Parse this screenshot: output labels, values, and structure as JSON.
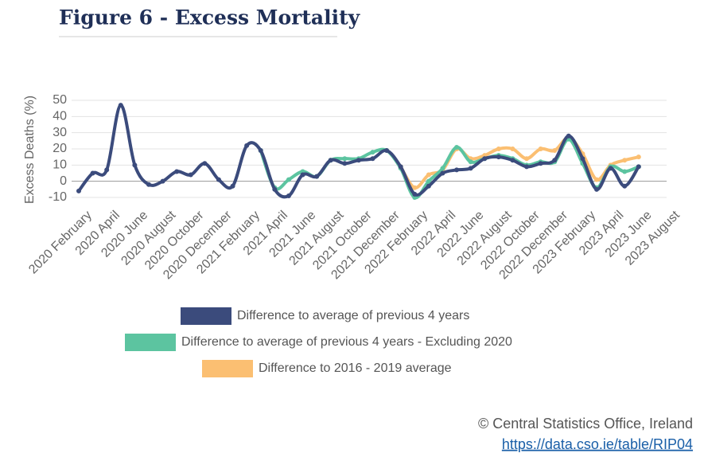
{
  "chart_data": {
    "type": "line",
    "title": "Figure 6 - Excess Mortality",
    "y_label": "Excess Deaths (%)",
    "categories": [
      "2020 February",
      null,
      "2020 April",
      null,
      "2020 June",
      null,
      "2020 August",
      null,
      "2020 October",
      null,
      "2020 December",
      null,
      "2021 February",
      null,
      "2021 April",
      null,
      "2021 June",
      null,
      "2021 August",
      null,
      "2021 October",
      null,
      "2021 December",
      null,
      "2022 February",
      null,
      "2022 April",
      null,
      "2022 June",
      null,
      "2022 August",
      null,
      "2022 October",
      null,
      "2022 December",
      null,
      "2023 February",
      null,
      "2023 April",
      null,
      "2023 June",
      null,
      "2023 August"
    ],
    "series": [
      {
        "name": "Difference to 2016 - 2019 average",
        "color": "#fbbf72",
        "values": [
          null,
          null,
          null,
          null,
          null,
          null,
          null,
          null,
          null,
          null,
          null,
          null,
          null,
          null,
          null,
          null,
          null,
          null,
          null,
          null,
          null,
          null,
          null,
          9,
          -4,
          4,
          7,
          20,
          14,
          16,
          20,
          20,
          14,
          20,
          19,
          27,
          17,
          1,
          10,
          13,
          15,
          null,
          null
        ]
      },
      {
        "name": "Difference to average of previous 4 years - Excluding 2020",
        "color": "#5cc4a0",
        "values": [
          null,
          null,
          null,
          null,
          null,
          null,
          null,
          null,
          null,
          null,
          null,
          null,
          null,
          19,
          -4,
          1,
          6,
          3,
          13,
          14,
          14,
          18,
          19,
          8,
          -10,
          0,
          8,
          21,
          12,
          14,
          16,
          14,
          10,
          12,
          12,
          26,
          11,
          -4,
          9,
          6,
          9,
          null,
          null
        ]
      },
      {
        "name": "Difference to average of previous 4 years",
        "color": "#3b4b7c",
        "values": [
          -6,
          5,
          7,
          47,
          10,
          -2,
          0,
          6,
          4,
          11,
          1,
          -3,
          22,
          19,
          -5,
          -9,
          4,
          3,
          13,
          11,
          13,
          14,
          19,
          9,
          -8,
          -3,
          5,
          7,
          8,
          14,
          15,
          13,
          9,
          11,
          13,
          28,
          14,
          -5,
          8,
          -3,
          9,
          null,
          null
        ]
      }
    ],
    "legend_order": [
      2,
      1,
      0
    ],
    "ylim": [
      -10,
      50
    ],
    "yticks": [
      -10,
      0,
      10,
      20,
      30,
      40,
      50
    ],
    "grid": true,
    "source": "© Central Statistics Office, Ireland",
    "source_link": "https://data.cso.ie/table/RIP04"
  }
}
